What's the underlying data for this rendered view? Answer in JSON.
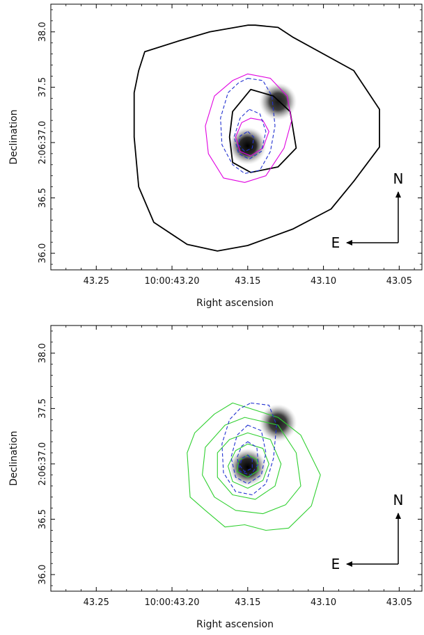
{
  "chart_data": [
    {
      "type": "contour",
      "title": "",
      "xlabel": "Right ascension",
      "ylabel": "Declination",
      "x_reversed": true,
      "xlim": [
        43.28,
        43.035
      ],
      "ylim": [
        35.85,
        38.25
      ],
      "x_ticks": [
        43.25,
        43.2,
        43.15,
        43.1,
        43.05
      ],
      "x_tick_labels": [
        "43.25",
        "10:00:43.20",
        "43.15",
        "43.10",
        "43.05"
      ],
      "y_ticks": [
        36.0,
        36.5,
        37.0,
        37.5,
        38.0
      ],
      "y_tick_labels": [
        "36.0",
        "36.5",
        "2:06:37.0",
        "37.5",
        "38.0"
      ],
      "compass": {
        "north": "N",
        "east": "E"
      },
      "sources": [
        {
          "x": 43.15,
          "y": 36.97,
          "intensity": 1.0
        },
        {
          "x": 43.13,
          "y": 37.37,
          "intensity": 0.9
        }
      ],
      "series": [
        {
          "color": "#000000",
          "style": "solid",
          "contours": [
            [
              [
                43.218,
                37.82
              ],
              [
                43.195,
                37.92
              ],
              [
                43.175,
                38.0
              ],
              [
                43.15,
                38.06
              ],
              [
                43.145,
                38.06
              ],
              [
                43.13,
                38.04
              ],
              [
                43.12,
                37.95
              ],
              [
                43.08,
                37.65
              ],
              [
                43.063,
                37.3
              ],
              [
                43.063,
                36.96
              ],
              [
                43.08,
                36.65
              ],
              [
                43.095,
                36.4
              ],
              [
                43.12,
                36.22
              ],
              [
                43.15,
                36.07
              ],
              [
                43.17,
                36.02
              ],
              [
                43.19,
                36.08
              ],
              [
                43.212,
                36.28
              ],
              [
                43.222,
                36.6
              ],
              [
                43.225,
                37.05
              ],
              [
                43.225,
                37.45
              ],
              [
                43.222,
                37.65
              ],
              [
                43.218,
                37.82
              ]
            ],
            [
              [
                43.148,
                37.48
              ],
              [
                43.133,
                37.42
              ],
              [
                43.122,
                37.28
              ],
              [
                43.118,
                36.95
              ],
              [
                43.13,
                36.78
              ],
              [
                43.148,
                36.73
              ],
              [
                43.16,
                36.82
              ],
              [
                43.162,
                37.05
              ],
              [
                43.16,
                37.28
              ],
              [
                43.148,
                37.48
              ]
            ]
          ]
        },
        {
          "color": "#e000e0",
          "style": "solid",
          "contours": [
            [
              [
                43.15,
                37.62
              ],
              [
                43.135,
                37.58
              ],
              [
                43.124,
                37.42
              ],
              [
                43.121,
                37.2
              ],
              [
                43.126,
                36.95
              ],
              [
                43.138,
                36.7
              ],
              [
                43.152,
                36.64
              ],
              [
                43.166,
                36.68
              ],
              [
                43.176,
                36.9
              ],
              [
                43.178,
                37.15
              ],
              [
                43.172,
                37.42
              ],
              [
                43.16,
                37.56
              ],
              [
                43.15,
                37.62
              ]
            ],
            [
              [
                43.148,
                37.22
              ],
              [
                43.14,
                37.2
              ],
              [
                43.136,
                37.1
              ],
              [
                43.14,
                36.95
              ],
              [
                43.148,
                36.88
              ],
              [
                43.155,
                36.92
              ],
              [
                43.158,
                37.05
              ],
              [
                43.154,
                37.18
              ],
              [
                43.148,
                37.22
              ]
            ]
          ]
        },
        {
          "color": "#2030d0",
          "style": "dashed",
          "contours": [
            [
              [
                43.15,
                37.58
              ],
              [
                43.14,
                37.56
              ],
              [
                43.134,
                37.42
              ],
              [
                43.132,
                37.15
              ],
              [
                43.135,
                36.92
              ],
              [
                43.142,
                36.75
              ],
              [
                43.152,
                36.72
              ],
              [
                43.16,
                36.8
              ],
              [
                43.167,
                36.98
              ],
              [
                43.168,
                37.22
              ],
              [
                43.163,
                37.45
              ],
              [
                43.156,
                37.54
              ],
              [
                43.15,
                37.58
              ]
            ],
            [
              [
                43.149,
                37.3
              ],
              [
                43.142,
                37.26
              ],
              [
                43.138,
                37.1
              ],
              [
                43.141,
                36.92
              ],
              [
                43.149,
                36.85
              ],
              [
                43.156,
                36.9
              ],
              [
                43.159,
                37.05
              ],
              [
                43.155,
                37.22
              ],
              [
                43.149,
                37.3
              ]
            ],
            [
              [
                43.15,
                37.1
              ],
              [
                43.146,
                37.05
              ],
              [
                43.147,
                36.95
              ],
              [
                43.152,
                36.92
              ],
              [
                43.156,
                36.98
              ],
              [
                43.155,
                37.06
              ],
              [
                43.15,
                37.1
              ]
            ]
          ]
        }
      ]
    },
    {
      "type": "contour",
      "title": "",
      "xlabel": "Right ascension",
      "ylabel": "Declination",
      "x_reversed": true,
      "xlim": [
        43.28,
        43.035
      ],
      "ylim": [
        35.85,
        38.25
      ],
      "x_ticks": [
        43.25,
        43.2,
        43.15,
        43.1,
        43.05
      ],
      "x_tick_labels": [
        "43.25",
        "10:00:43.20",
        "43.15",
        "43.10",
        "43.05"
      ],
      "y_ticks": [
        36.0,
        36.5,
        37.0,
        37.5,
        38.0
      ],
      "y_tick_labels": [
        "36.0",
        "36.5",
        "2:06:37.0",
        "37.5",
        "38.0"
      ],
      "compass": {
        "north": "N",
        "east": "E"
      },
      "sources": [
        {
          "x": 43.15,
          "y": 36.97,
          "intensity": 1.0
        },
        {
          "x": 43.13,
          "y": 37.37,
          "intensity": 0.9
        }
      ],
      "series": [
        {
          "color": "#30d030",
          "style": "solid",
          "contours": [
            [
              [
                43.16,
                37.55
              ],
              [
                43.13,
                37.42
              ],
              [
                43.115,
                37.26
              ],
              [
                43.102,
                36.9
              ],
              [
                43.108,
                36.62
              ],
              [
                43.123,
                36.42
              ],
              [
                43.138,
                36.4
              ],
              [
                43.152,
                36.45
              ],
              [
                43.165,
                36.43
              ],
              [
                43.178,
                36.58
              ],
              [
                43.188,
                36.7
              ],
              [
                43.19,
                37.1
              ],
              [
                43.185,
                37.28
              ],
              [
                43.172,
                37.45
              ],
              [
                43.16,
                37.55
              ]
            ],
            [
              [
                43.152,
                37.42
              ],
              [
                43.13,
                37.35
              ],
              [
                43.118,
                37.1
              ],
              [
                43.115,
                36.8
              ],
              [
                43.125,
                36.63
              ],
              [
                43.14,
                36.55
              ],
              [
                43.158,
                36.58
              ],
              [
                43.172,
                36.7
              ],
              [
                43.18,
                36.9
              ],
              [
                43.178,
                37.15
              ],
              [
                43.165,
                37.35
              ],
              [
                43.152,
                37.42
              ]
            ],
            [
              [
                43.15,
                37.28
              ],
              [
                43.135,
                37.22
              ],
              [
                43.128,
                37.0
              ],
              [
                43.132,
                36.8
              ],
              [
                43.145,
                36.68
              ],
              [
                43.16,
                36.72
              ],
              [
                43.17,
                36.88
              ],
              [
                43.17,
                37.1
              ],
              [
                43.162,
                37.22
              ],
              [
                43.15,
                37.28
              ]
            ],
            [
              [
                43.15,
                37.18
              ],
              [
                43.14,
                37.14
              ],
              [
                43.136,
                37.0
              ],
              [
                43.14,
                36.85
              ],
              [
                43.15,
                36.78
              ],
              [
                43.16,
                36.84
              ],
              [
                43.163,
                36.98
              ],
              [
                43.158,
                37.12
              ],
              [
                43.15,
                37.18
              ]
            ],
            [
              [
                43.15,
                37.08
              ],
              [
                43.144,
                37.04
              ],
              [
                43.143,
                36.94
              ],
              [
                43.15,
                36.88
              ],
              [
                43.157,
                36.93
              ],
              [
                43.156,
                37.03
              ],
              [
                43.15,
                37.08
              ]
            ]
          ]
        },
        {
          "color": "#2030d0",
          "style": "dashed",
          "contours": [
            [
              [
                43.148,
                37.55
              ],
              [
                43.136,
                37.53
              ],
              [
                43.131,
                37.35
              ],
              [
                43.133,
                37.05
              ],
              [
                43.138,
                36.82
              ],
              [
                43.147,
                36.72
              ],
              [
                43.158,
                36.75
              ],
              [
                43.166,
                36.92
              ],
              [
                43.167,
                37.18
              ],
              [
                43.162,
                37.4
              ],
              [
                43.155,
                37.5
              ],
              [
                43.148,
                37.55
              ]
            ],
            [
              [
                43.15,
                37.35
              ],
              [
                43.141,
                37.3
              ],
              [
                43.138,
                37.1
              ],
              [
                43.141,
                36.9
              ],
              [
                43.15,
                36.82
              ],
              [
                43.158,
                36.88
              ],
              [
                43.161,
                37.06
              ],
              [
                43.157,
                37.26
              ],
              [
                43.15,
                37.35
              ]
            ],
            [
              [
                43.15,
                37.2
              ],
              [
                43.144,
                37.15
              ],
              [
                43.143,
                37.0
              ],
              [
                43.148,
                36.9
              ],
              [
                43.155,
                36.93
              ],
              [
                43.157,
                37.06
              ],
              [
                43.154,
                37.16
              ],
              [
                43.15,
                37.2
              ]
            ],
            [
              [
                43.15,
                37.08
              ],
              [
                43.147,
                37.04
              ],
              [
                43.147,
                36.96
              ],
              [
                43.152,
                36.93
              ],
              [
                43.155,
                36.98
              ],
              [
                43.154,
                37.05
              ],
              [
                43.15,
                37.08
              ]
            ]
          ]
        }
      ]
    }
  ]
}
